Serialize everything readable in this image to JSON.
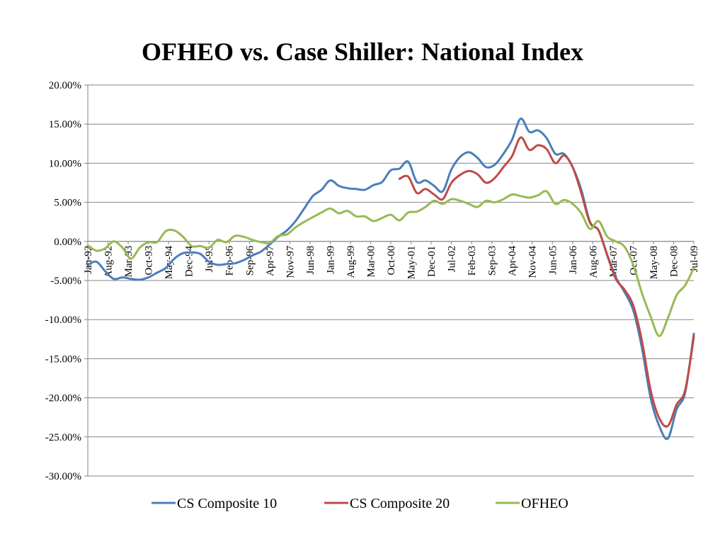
{
  "chart_data": {
    "type": "line",
    "title": "OFHEO vs. Case Shiller:  National Index",
    "xlabel": "",
    "ylabel": "",
    "ylim": [
      -30,
      20
    ],
    "yticks": [
      "20.00%",
      "15.00%",
      "10.00%",
      "5.00%",
      "0.00%",
      "-5.00%",
      "-10.00%",
      "-15.00%",
      "-20.00%",
      "-25.00%",
      "-30.00%"
    ],
    "ytick_values": [
      20,
      15,
      10,
      5,
      0,
      -5,
      -10,
      -15,
      -20,
      -25,
      -30
    ],
    "xlim": [
      "1992-01",
      "2009-07"
    ],
    "xticks": [
      "Jan-92",
      "Aug-92",
      "Mar-93",
      "Oct-93",
      "May-94",
      "Dec-94",
      "Jul-95",
      "Feb-96",
      "Sep-96",
      "Apr-97",
      "Nov-97",
      "Jun-98",
      "Jan-99",
      "Aug-99",
      "Mar-00",
      "Oct-00",
      "May-01",
      "Dec-01",
      "Jul-02",
      "Feb-03",
      "Sep-03",
      "Apr-04",
      "Nov-04",
      "Jun-05",
      "Jan-06",
      "Aug-06",
      "Mar-07",
      "Oct-07",
      "May-08",
      "Dec-08",
      "Jul-09"
    ],
    "grid": "horizontal",
    "legend_position": "bottom",
    "series": [
      {
        "name": "CS Composite 10",
        "color": "#4a7ebb",
        "points": [
          [
            "1992-01",
            -3.0
          ],
          [
            "1992-04",
            -2.6
          ],
          [
            "1992-07",
            -3.8
          ],
          [
            "1992-10",
            -4.8
          ],
          [
            "1993-01",
            -4.6
          ],
          [
            "1993-04",
            -4.8
          ],
          [
            "1993-07",
            -4.9
          ],
          [
            "1993-10",
            -4.6
          ],
          [
            "1994-01",
            -4.0
          ],
          [
            "1994-04",
            -3.4
          ],
          [
            "1994-07",
            -2.2
          ],
          [
            "1994-10",
            -1.5
          ],
          [
            "1995-01",
            -1.4
          ],
          [
            "1995-04",
            -1.6
          ],
          [
            "1995-07",
            -2.6
          ],
          [
            "1995-10",
            -3.0
          ],
          [
            "1996-01",
            -2.9
          ],
          [
            "1996-04",
            -2.8
          ],
          [
            "1996-07",
            -2.4
          ],
          [
            "1996-10",
            -1.8
          ],
          [
            "1997-01",
            -1.3
          ],
          [
            "1997-04",
            -0.4
          ],
          [
            "1997-07",
            0.6
          ],
          [
            "1997-10",
            1.4
          ],
          [
            "1998-01",
            2.6
          ],
          [
            "1998-04",
            4.2
          ],
          [
            "1998-07",
            5.8
          ],
          [
            "1998-10",
            6.6
          ],
          [
            "1999-01",
            7.8
          ],
          [
            "1999-04",
            7.1
          ],
          [
            "1999-07",
            6.8
          ],
          [
            "1999-10",
            6.7
          ],
          [
            "2000-01",
            6.6
          ],
          [
            "2000-04",
            7.2
          ],
          [
            "2000-07",
            7.6
          ],
          [
            "2000-10",
            9.1
          ],
          [
            "2001-01",
            9.3
          ],
          [
            "2001-04",
            10.2
          ],
          [
            "2001-07",
            7.6
          ],
          [
            "2001-10",
            7.8
          ],
          [
            "2002-01",
            7.1
          ],
          [
            "2002-04",
            6.4
          ],
          [
            "2002-07",
            9.2
          ],
          [
            "2002-10",
            10.8
          ],
          [
            "2003-01",
            11.4
          ],
          [
            "2003-04",
            10.7
          ],
          [
            "2003-07",
            9.5
          ],
          [
            "2003-10",
            9.8
          ],
          [
            "2004-01",
            11.2
          ],
          [
            "2004-04",
            13.0
          ],
          [
            "2004-07",
            15.7
          ],
          [
            "2004-10",
            14.0
          ],
          [
            "2005-01",
            14.2
          ],
          [
            "2005-04",
            13.2
          ],
          [
            "2005-07",
            11.2
          ],
          [
            "2005-10",
            11.2
          ],
          [
            "2006-01",
            9.5
          ],
          [
            "2006-04",
            6.6
          ],
          [
            "2006-07",
            2.5
          ],
          [
            "2006-10",
            1.4
          ],
          [
            "2007-01",
            -1.7
          ],
          [
            "2007-04",
            -4.6
          ],
          [
            "2007-07",
            -6.5
          ],
          [
            "2007-10",
            -8.8
          ],
          [
            "2008-01",
            -13.6
          ],
          [
            "2008-04",
            -20.0
          ],
          [
            "2008-07",
            -23.6
          ],
          [
            "2008-10",
            -25.2
          ],
          [
            "2009-01",
            -21.5
          ],
          [
            "2009-04",
            -19.3
          ],
          [
            "2009-07",
            -11.8
          ]
        ]
      },
      {
        "name": "CS Composite 20",
        "color": "#be4b48",
        "points": [
          [
            "2001-01",
            8.0
          ],
          [
            "2001-04",
            8.3
          ],
          [
            "2001-07",
            6.2
          ],
          [
            "2001-10",
            6.7
          ],
          [
            "2002-01",
            6.0
          ],
          [
            "2002-04",
            5.4
          ],
          [
            "2002-07",
            7.5
          ],
          [
            "2002-10",
            8.5
          ],
          [
            "2003-01",
            9.0
          ],
          [
            "2003-04",
            8.6
          ],
          [
            "2003-07",
            7.5
          ],
          [
            "2003-10",
            8.1
          ],
          [
            "2004-01",
            9.5
          ],
          [
            "2004-04",
            10.9
          ],
          [
            "2004-07",
            13.3
          ],
          [
            "2004-10",
            11.7
          ],
          [
            "2005-01",
            12.3
          ],
          [
            "2005-04",
            11.8
          ],
          [
            "2005-07",
            10.0
          ],
          [
            "2005-10",
            11.0
          ],
          [
            "2006-01",
            9.5
          ],
          [
            "2006-04",
            6.2
          ],
          [
            "2006-07",
            2.4
          ],
          [
            "2006-10",
            1.4
          ],
          [
            "2007-01",
            -1.8
          ],
          [
            "2007-04",
            -4.8
          ],
          [
            "2007-07",
            -6.2
          ],
          [
            "2007-10",
            -8.2
          ],
          [
            "2008-01",
            -12.7
          ],
          [
            "2008-04",
            -19.0
          ],
          [
            "2008-07",
            -22.6
          ],
          [
            "2008-10",
            -23.6
          ],
          [
            "2009-01",
            -20.9
          ],
          [
            "2009-04",
            -19.0
          ],
          [
            "2009-07",
            -12.2
          ]
        ]
      },
      {
        "name": "OFHEO",
        "color": "#98b954",
        "points": [
          [
            "1992-01",
            -0.5
          ],
          [
            "1992-04",
            -1.2
          ],
          [
            "1992-07",
            -0.9
          ],
          [
            "1992-10",
            0.0
          ],
          [
            "1993-01",
            -0.8
          ],
          [
            "1993-04",
            -2.2
          ],
          [
            "1993-07",
            -0.8
          ],
          [
            "1993-10",
            -0.1
          ],
          [
            "1994-01",
            -0.1
          ],
          [
            "1994-04",
            1.3
          ],
          [
            "1994-07",
            1.4
          ],
          [
            "1994-10",
            0.6
          ],
          [
            "1995-01",
            -0.6
          ],
          [
            "1995-04",
            -0.6
          ],
          [
            "1995-07",
            -0.8
          ],
          [
            "1995-10",
            0.2
          ],
          [
            "1996-01",
            -0.1
          ],
          [
            "1996-04",
            0.7
          ],
          [
            "1996-07",
            0.6
          ],
          [
            "1996-10",
            0.2
          ],
          [
            "1997-01",
            -0.1
          ],
          [
            "1997-04",
            -0.2
          ],
          [
            "1997-07",
            0.7
          ],
          [
            "1997-10",
            0.9
          ],
          [
            "1998-01",
            1.8
          ],
          [
            "1998-04",
            2.5
          ],
          [
            "1998-07",
            3.1
          ],
          [
            "1998-10",
            3.7
          ],
          [
            "1999-01",
            4.2
          ],
          [
            "1999-04",
            3.6
          ],
          [
            "1999-07",
            3.9
          ],
          [
            "1999-10",
            3.2
          ],
          [
            "2000-01",
            3.2
          ],
          [
            "2000-04",
            2.6
          ],
          [
            "2000-07",
            3.0
          ],
          [
            "2000-10",
            3.4
          ],
          [
            "2001-01",
            2.7
          ],
          [
            "2001-04",
            3.7
          ],
          [
            "2001-07",
            3.8
          ],
          [
            "2001-10",
            4.4
          ],
          [
            "2002-01",
            5.2
          ],
          [
            "2002-04",
            4.8
          ],
          [
            "2002-07",
            5.4
          ],
          [
            "2002-10",
            5.2
          ],
          [
            "2003-01",
            4.8
          ],
          [
            "2003-04",
            4.4
          ],
          [
            "2003-07",
            5.2
          ],
          [
            "2003-10",
            5.0
          ],
          [
            "2004-01",
            5.4
          ],
          [
            "2004-04",
            6.0
          ],
          [
            "2004-07",
            5.8
          ],
          [
            "2004-10",
            5.6
          ],
          [
            "2005-01",
            5.9
          ],
          [
            "2005-04",
            6.4
          ],
          [
            "2005-07",
            4.8
          ],
          [
            "2005-10",
            5.3
          ],
          [
            "2006-01",
            4.8
          ],
          [
            "2006-04",
            3.6
          ],
          [
            "2006-07",
            1.6
          ],
          [
            "2006-10",
            2.6
          ],
          [
            "2007-01",
            0.6
          ],
          [
            "2007-04",
            0.0
          ],
          [
            "2007-07",
            -0.7
          ],
          [
            "2007-10",
            -3.0
          ],
          [
            "2008-01",
            -6.6
          ],
          [
            "2008-04",
            -9.6
          ],
          [
            "2008-07",
            -12.1
          ],
          [
            "2008-10",
            -9.8
          ],
          [
            "2009-01",
            -6.9
          ],
          [
            "2009-04",
            -5.6
          ],
          [
            "2009-07",
            -3.4
          ]
        ]
      }
    ]
  }
}
